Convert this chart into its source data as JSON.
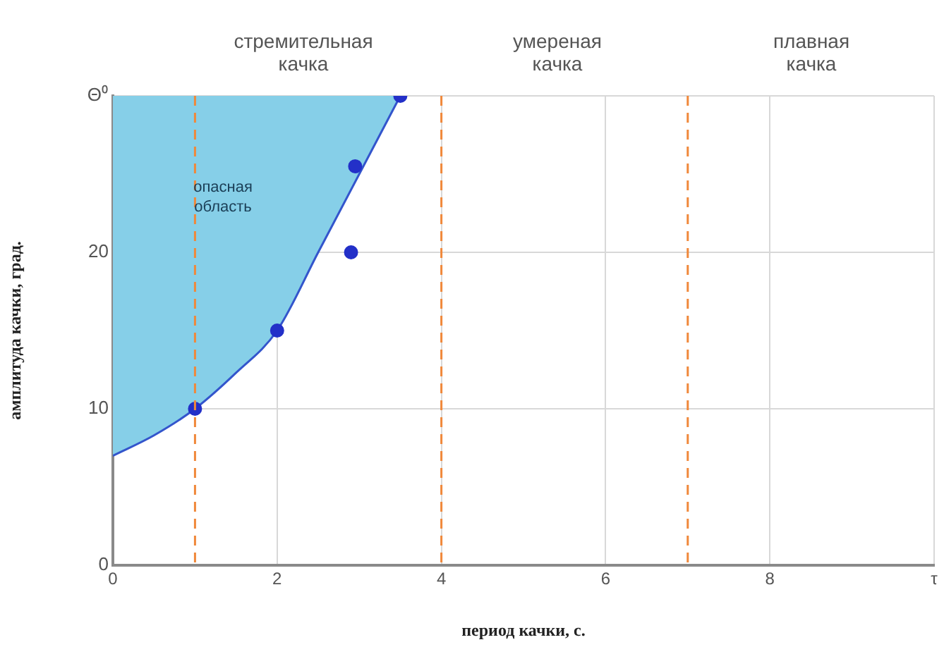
{
  "chart_data": {
    "type": "line",
    "xlabel": "период качки, с.",
    "ylabel": "амплитуда качки, град.",
    "xlim": [
      0,
      10
    ],
    "ylim": [
      0,
      30
    ],
    "xticks": [
      0,
      2,
      4,
      6,
      8,
      {
        "value": 10,
        "label": "τ"
      }
    ],
    "yticks": [
      0,
      10,
      20,
      {
        "value": 30,
        "label": "Θ⁰"
      }
    ],
    "grid": true,
    "legend": false,
    "series": [
      {
        "color": "#3355cc",
        "marker": "none",
        "x": [
          0,
          0.5,
          1,
          1.5,
          2,
          2.5,
          3,
          3.5
        ],
        "values": [
          7,
          8.3,
          10,
          12.3,
          15,
          20,
          25,
          30
        ],
        "lower": [
          7,
          8.3,
          10,
          12.3,
          15,
          20,
          25,
          30
        ],
        "upper": [
          30,
          30,
          30,
          30,
          30,
          30,
          30,
          30
        ]
      },
      {
        "type": "scatter",
        "color": "#2330c8",
        "marker": "circle",
        "x": [
          1,
          2,
          2.9,
          2.95,
          3.5
        ],
        "values": [
          10,
          15,
          20,
          25.5,
          30
        ]
      }
    ],
    "ref_lines": [
      {
        "axis": "x",
        "value": 1,
        "color": "#f0883a",
        "line_style": "dashed"
      },
      {
        "axis": "x",
        "value": 4,
        "color": "#f0883a",
        "line_style": "dashed"
      },
      {
        "axis": "x",
        "value": 7,
        "color": "#f0883a",
        "line_style": "dashed"
      }
    ],
    "annotations": [
      "стремительная качка",
      "умереная качка",
      "плавная качка",
      "опасная область"
    ]
  }
}
